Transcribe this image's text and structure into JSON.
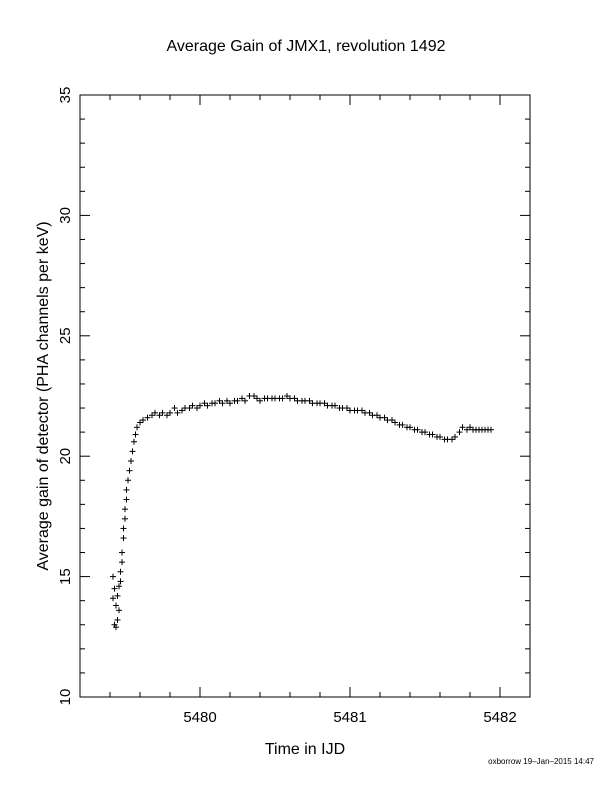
{
  "chart_data": {
    "type": "scatter",
    "title": "Average Gain of JMX1, revolution 1492",
    "xlabel": "Time in IJD",
    "ylabel": "Average gain of detector (PHA channels per keV)",
    "xlim": [
      5479.2,
      5482.2
    ],
    "ylim": [
      10,
      35
    ],
    "xticks": [
      5480,
      5481,
      5482
    ],
    "xtick_labels": [
      "5480",
      "5481",
      "5482"
    ],
    "yticks": [
      10,
      15,
      20,
      25,
      30,
      35
    ],
    "ytick_labels": [
      "10",
      "15",
      "20",
      "25",
      "30",
      "35"
    ],
    "grid": false,
    "marker": "plus",
    "series": [
      {
        "x": [
          5479.42,
          5479.42,
          5479.43,
          5479.43,
          5479.44,
          5479.44,
          5479.45,
          5479.45,
          5479.46,
          5479.46,
          5479.47,
          5479.47,
          5479.48,
          5479.48,
          5479.49,
          5479.49,
          5479.5,
          5479.5,
          5479.51,
          5479.51,
          5479.52,
          5479.53,
          5479.54,
          5479.55,
          5479.56,
          5479.57,
          5479.58,
          5479.6,
          5479.62,
          5479.65,
          5479.68,
          5479.7,
          5479.73,
          5479.75,
          5479.78,
          5479.8,
          5479.83,
          5479.85,
          5479.88,
          5479.9,
          5479.93,
          5479.95,
          5479.98,
          5480.0,
          5480.03,
          5480.05,
          5480.08,
          5480.1,
          5480.13,
          5480.15,
          5480.18,
          5480.2,
          5480.23,
          5480.25,
          5480.28,
          5480.3,
          5480.33,
          5480.36,
          5480.38,
          5480.4,
          5480.43,
          5480.45,
          5480.48,
          5480.5,
          5480.53,
          5480.55,
          5480.58,
          5480.6,
          5480.63,
          5480.65,
          5480.68,
          5480.7,
          5480.73,
          5480.75,
          5480.78,
          5480.8,
          5480.83,
          5480.85,
          5480.88,
          5480.9,
          5480.93,
          5480.95,
          5480.98,
          5481.0,
          5481.03,
          5481.05,
          5481.08,
          5481.1,
          5481.13,
          5481.15,
          5481.18,
          5481.2,
          5481.23,
          5481.25,
          5481.28,
          5481.3,
          5481.33,
          5481.35,
          5481.38,
          5481.4,
          5481.43,
          5481.45,
          5481.48,
          5481.5,
          5481.53,
          5481.55,
          5481.58,
          5481.6,
          5481.63,
          5481.65,
          5481.68,
          5481.7,
          5481.73,
          5481.75,
          5481.78,
          5481.8,
          5481.82,
          5481.84,
          5481.86,
          5481.88,
          5481.9,
          5481.92,
          5481.94
        ],
        "y": [
          15.0,
          14.1,
          13.0,
          14.5,
          12.9,
          13.8,
          13.2,
          14.2,
          13.6,
          14.6,
          14.8,
          15.2,
          15.6,
          16.0,
          16.6,
          17.0,
          17.4,
          17.8,
          18.2,
          18.6,
          19.0,
          19.4,
          19.8,
          20.2,
          20.6,
          20.9,
          21.2,
          21.4,
          21.5,
          21.6,
          21.7,
          21.8,
          21.7,
          21.8,
          21.7,
          21.8,
          22.0,
          21.8,
          21.9,
          22.0,
          22.0,
          22.1,
          22.0,
          22.1,
          22.2,
          22.1,
          22.2,
          22.2,
          22.3,
          22.2,
          22.3,
          22.2,
          22.3,
          22.3,
          22.4,
          22.3,
          22.5,
          22.5,
          22.4,
          22.3,
          22.4,
          22.4,
          22.4,
          22.4,
          22.4,
          22.4,
          22.5,
          22.4,
          22.4,
          22.3,
          22.3,
          22.3,
          22.3,
          22.2,
          22.2,
          22.2,
          22.2,
          22.1,
          22.1,
          22.1,
          22.0,
          22.0,
          22.0,
          21.9,
          21.9,
          21.9,
          21.9,
          21.8,
          21.8,
          21.7,
          21.7,
          21.6,
          21.6,
          21.5,
          21.5,
          21.4,
          21.3,
          21.3,
          21.2,
          21.2,
          21.1,
          21.1,
          21.0,
          21.0,
          20.9,
          20.9,
          20.8,
          20.8,
          20.7,
          20.7,
          20.7,
          20.8,
          21.0,
          21.2,
          21.1,
          21.2,
          21.1,
          21.1,
          21.1,
          21.1,
          21.1,
          21.1,
          21.1
        ]
      }
    ]
  },
  "footer": "oxborrow 19–Jan–2015 14:47"
}
